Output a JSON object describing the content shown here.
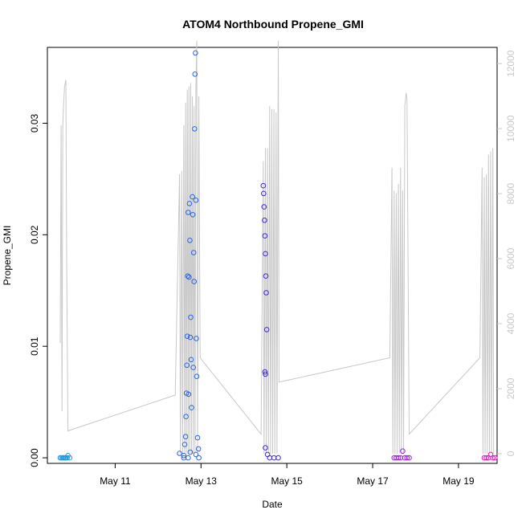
{
  "chart_data": {
    "type": "scatter",
    "title": "ATOM4 Northbound Propene_GMI",
    "xlabel": "Date",
    "ylabel": "Propene_GMI",
    "x_ticks": [
      "May 11",
      "May 13",
      "May 15",
      "May 17",
      "May 19"
    ],
    "xlim_days": [
      9.42,
      19.9
    ],
    "ylim": [
      -0.0005,
      0.0368
    ],
    "y_ticks": [
      "0.00",
      "0.01",
      "0.02",
      "0.03"
    ],
    "y2lim": [
      -300,
      12500
    ],
    "y2_ticks": [
      "0",
      "2000",
      "4000",
      "6000",
      "8000",
      "10000",
      "12000"
    ],
    "grid": false,
    "legend": "none",
    "colors": {
      "altitude_line": "#c8c8c8",
      "flight1": "#1e9de0",
      "flight2": "#2a63ea",
      "flight3": "#3a28e6",
      "flight4": "#9a1ee6",
      "flight5": "#ee10c0"
    },
    "series": [
      {
        "color": "#1e9de0",
        "points": [
          [
            9.72,
            0
          ],
          [
            9.75,
            0
          ],
          [
            9.78,
            0
          ],
          [
            9.8,
            0
          ],
          [
            9.83,
            0
          ],
          [
            9.85,
            0
          ],
          [
            9.88,
            0
          ],
          [
            9.9,
            0.0002
          ],
          [
            9.94,
            0
          ]
        ]
      },
      {
        "color": "#2a63ea",
        "points": [
          [
            12.5,
            0.0004
          ],
          [
            12.6,
            0.0002
          ],
          [
            12.62,
            0.0012
          ],
          [
            12.64,
            0.0019
          ],
          [
            12.65,
            0.0037
          ],
          [
            12.66,
            0.0058
          ],
          [
            12.67,
            0.0083
          ],
          [
            12.68,
            0.0109
          ],
          [
            12.69,
            0.0163
          ],
          [
            12.7,
            0.022
          ],
          [
            12.71,
            0.0057
          ],
          [
            12.72,
            0.0162
          ],
          [
            12.73,
            0.0228
          ],
          [
            12.74,
            0.0195
          ],
          [
            12.75,
            0.0108
          ],
          [
            12.76,
            0.0126
          ],
          [
            12.77,
            0.0088
          ],
          [
            12.78,
            0.0045
          ],
          [
            12.8,
            0.0234
          ],
          [
            12.81,
            0.0218
          ],
          [
            12.82,
            0.0081
          ],
          [
            12.83,
            0.0184
          ],
          [
            12.84,
            0.0158
          ],
          [
            12.85,
            0.0295
          ],
          [
            12.86,
            0.0344
          ],
          [
            12.87,
            0.0363
          ],
          [
            12.88,
            0.0231
          ],
          [
            12.89,
            0.0107
          ],
          [
            12.9,
            0.0073
          ],
          [
            12.92,
            0.0018
          ],
          [
            12.94,
            0.0008
          ],
          [
            12.95,
            0.0
          ],
          [
            12.88,
            0.0003
          ],
          [
            12.75,
            0.0005
          ],
          [
            12.7,
            0.0
          ],
          [
            12.6,
            0.0
          ]
        ]
      },
      {
        "color": "#3a28e6",
        "points": [
          [
            14.45,
            0.0244
          ],
          [
            14.46,
            0.0237
          ],
          [
            14.47,
            0.0225
          ],
          [
            14.48,
            0.0213
          ],
          [
            14.49,
            0.0199
          ],
          [
            14.5,
            0.0183
          ],
          [
            14.51,
            0.0163
          ],
          [
            14.52,
            0.0148
          ],
          [
            14.53,
            0.0115
          ],
          [
            14.5,
            0.0075
          ],
          [
            14.49,
            0.0077
          ],
          [
            14.5,
            0.0009
          ],
          [
            14.55,
            0.0003
          ],
          [
            14.6,
            0
          ],
          [
            14.7,
            0
          ],
          [
            14.8,
            0
          ]
        ]
      },
      {
        "color": "#9a1ee6",
        "points": [
          [
            17.5,
            0
          ],
          [
            17.55,
            0
          ],
          [
            17.6,
            0
          ],
          [
            17.65,
            0
          ],
          [
            17.7,
            0.0006
          ],
          [
            17.75,
            0
          ],
          [
            17.8,
            0
          ],
          [
            17.85,
            0
          ]
        ]
      },
      {
        "color": "#ee10c0",
        "points": [
          [
            19.6,
            0
          ],
          [
            19.65,
            0
          ],
          [
            19.7,
            0
          ],
          [
            19.75,
            0.0003
          ],
          [
            19.8,
            0
          ],
          [
            19.85,
            0
          ]
        ]
      }
    ]
  }
}
